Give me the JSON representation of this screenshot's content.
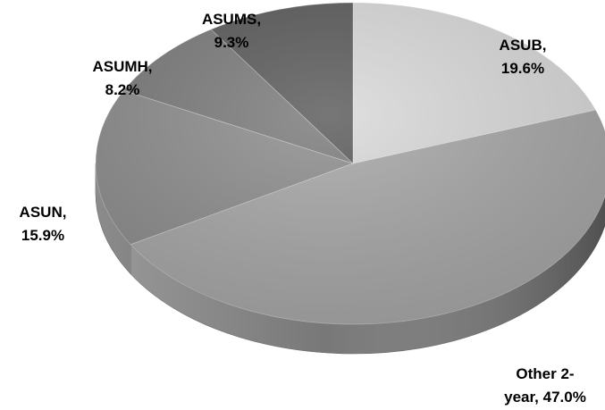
{
  "chart_data": {
    "type": "pie",
    "categories": [
      "ASUB",
      "Other 2-year",
      "ASUN",
      "ASUMH",
      "ASUMS"
    ],
    "values": [
      19.6,
      47.0,
      15.9,
      8.2,
      9.3
    ],
    "unit": "%",
    "labels": [
      {
        "line1": "ASUB,",
        "line2": "19.6%"
      },
      {
        "line1": "Other 2-",
        "line2": "year, 47.0%"
      },
      {
        "line1": "ASUN,",
        "line2": "15.9%"
      },
      {
        "line1": "ASUMH,",
        "line2": "8.2%"
      },
      {
        "line1": "ASUMS,",
        "line2": "9.3%"
      }
    ],
    "colors": [
      "#d9d9d9",
      "#a6a6a6",
      "#8c8c8c",
      "#7a7a7a",
      "#595959"
    ],
    "start": "12 o'clock",
    "direction": "clockwise",
    "style": "3d-tilted",
    "legend": "none"
  }
}
